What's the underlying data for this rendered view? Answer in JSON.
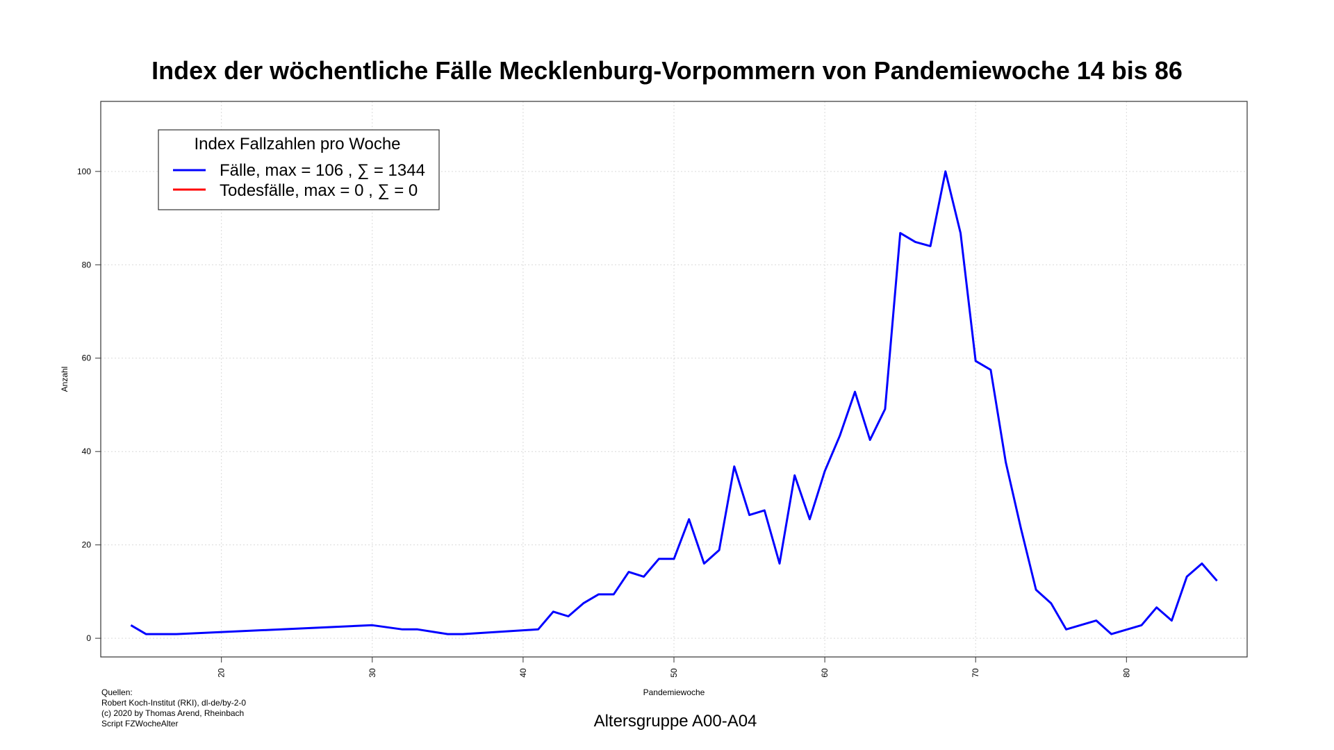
{
  "chart_data": {
    "type": "line",
    "title": "Index der wöchentliche Fälle Mecklenburg-Vorpommern von Pandemiewoche 14 bis 86",
    "subtitle": "Altersgruppe A00-A04",
    "xlabel": "Pandemiewoche",
    "ylabel": "Anzahl",
    "xlim": [
      12,
      88
    ],
    "ylim": [
      -4,
      115
    ],
    "x_ticks": [
      20,
      30,
      40,
      50,
      60,
      70,
      80
    ],
    "y_ticks": [
      0,
      20,
      40,
      60,
      80,
      100
    ],
    "grid": true,
    "legend": {
      "title": "Index Fallzahlen pro Woche",
      "position": "top-left",
      "entries": [
        {
          "label": "Fälle, max = 106 ,  ∑  = 1344",
          "color": "#0000ff"
        },
        {
          "label": "Todesfälle, max = 0 ,  ∑  = 0",
          "color": "#ff0000"
        }
      ]
    },
    "series": [
      {
        "name": "Fälle",
        "color": "#0000ff",
        "x": [
          14,
          15,
          17,
          30,
          32,
          33,
          35,
          36,
          41,
          42,
          43,
          44,
          45,
          46,
          47,
          48,
          49,
          50,
          51,
          52,
          53,
          54,
          55,
          56,
          57,
          58,
          59,
          60,
          61,
          62,
          63,
          64,
          65,
          66,
          67,
          68,
          69,
          70,
          71,
          72,
          73,
          74,
          75,
          76,
          78,
          79,
          81,
          82,
          83,
          84,
          85,
          86
        ],
        "y": [
          2.8,
          0.9,
          0.9,
          2.8,
          1.9,
          1.9,
          0.9,
          0.9,
          1.9,
          5.7,
          4.7,
          7.5,
          9.4,
          9.4,
          14.2,
          13.2,
          17.0,
          17.0,
          25.5,
          16.0,
          18.9,
          36.8,
          26.4,
          27.4,
          16.0,
          34.9,
          25.5,
          35.8,
          43.4,
          52.8,
          42.5,
          49.1,
          86.8,
          84.9,
          84.0,
          100.0,
          86.8,
          59.4,
          57.5,
          37.7,
          23.6,
          10.4,
          7.5,
          1.9,
          3.8,
          0.9,
          2.8,
          6.6,
          3.8,
          13.2,
          16.0,
          12.3
        ]
      },
      {
        "name": "Todesfälle",
        "color": "#ff0000",
        "x": [],
        "y": []
      }
    ]
  },
  "sources": {
    "line1": "Quellen:",
    "line2": "Robert Koch-Institut (RKI), dl-de/by-2-0",
    "line3": "(c) 2020 by Thomas Arend, Rheinbach",
    "line4": "Script FZWocheAlter"
  }
}
